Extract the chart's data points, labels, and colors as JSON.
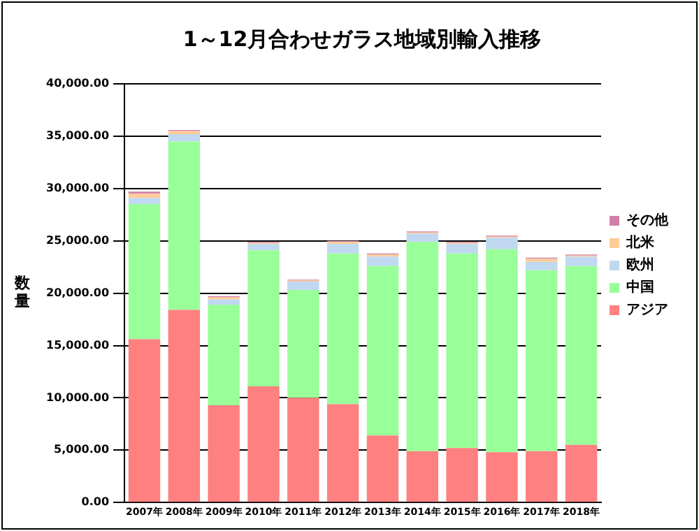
{
  "chart_data": {
    "type": "bar",
    "title": "1～12月合わせガラス地域別輸入推移",
    "ylabel": "数量",
    "stacked": true,
    "legend": "right",
    "grid": "y",
    "categories": [
      "2007年",
      "2008年",
      "2009年",
      "2010年",
      "2011年",
      "2012年",
      "2013年",
      "2014年",
      "2015年",
      "2016年",
      "2017年",
      "2018年"
    ],
    "ylim": [
      0,
      40000
    ],
    "yticks": [
      {
        "value": 0,
        "label": "0.00"
      },
      {
        "value": 5000,
        "label": "5,000.00"
      },
      {
        "value": 10000,
        "label": "10,000.00"
      },
      {
        "value": 15000,
        "label": "15,000.00"
      },
      {
        "value": 20000,
        "label": "20,000.00"
      },
      {
        "value": 25000,
        "label": "25,000.00"
      },
      {
        "value": 30000,
        "label": "30,000.00"
      },
      {
        "value": 35000,
        "label": "35,000.00"
      },
      {
        "value": 40000,
        "label": "40,000.00"
      }
    ],
    "series": [
      {
        "name": "アジア",
        "color": "#ff8080",
        "values": [
          15600,
          18400,
          9300,
          11100,
          10000,
          9400,
          6400,
          4900,
          5200,
          4800,
          4900,
          5500
        ]
      },
      {
        "name": "中国",
        "color": "#99ff99",
        "values": [
          12900,
          16100,
          9600,
          13000,
          10300,
          14400,
          16200,
          20000,
          18600,
          19400,
          17300,
          17100
        ]
      },
      {
        "name": "欧州",
        "color": "#c0d8f0",
        "values": [
          600,
          700,
          500,
          600,
          800,
          900,
          900,
          800,
          900,
          1100,
          800,
          900
        ]
      },
      {
        "name": "北米",
        "color": "#ffcc99",
        "values": [
          400,
          300,
          200,
          100,
          100,
          200,
          200,
          100,
          100,
          100,
          300,
          100
        ]
      },
      {
        "name": "その他",
        "color": "#d080a8",
        "values": [
          200,
          100,
          100,
          100,
          100,
          100,
          100,
          100,
          100,
          100,
          100,
          100
        ]
      }
    ]
  }
}
